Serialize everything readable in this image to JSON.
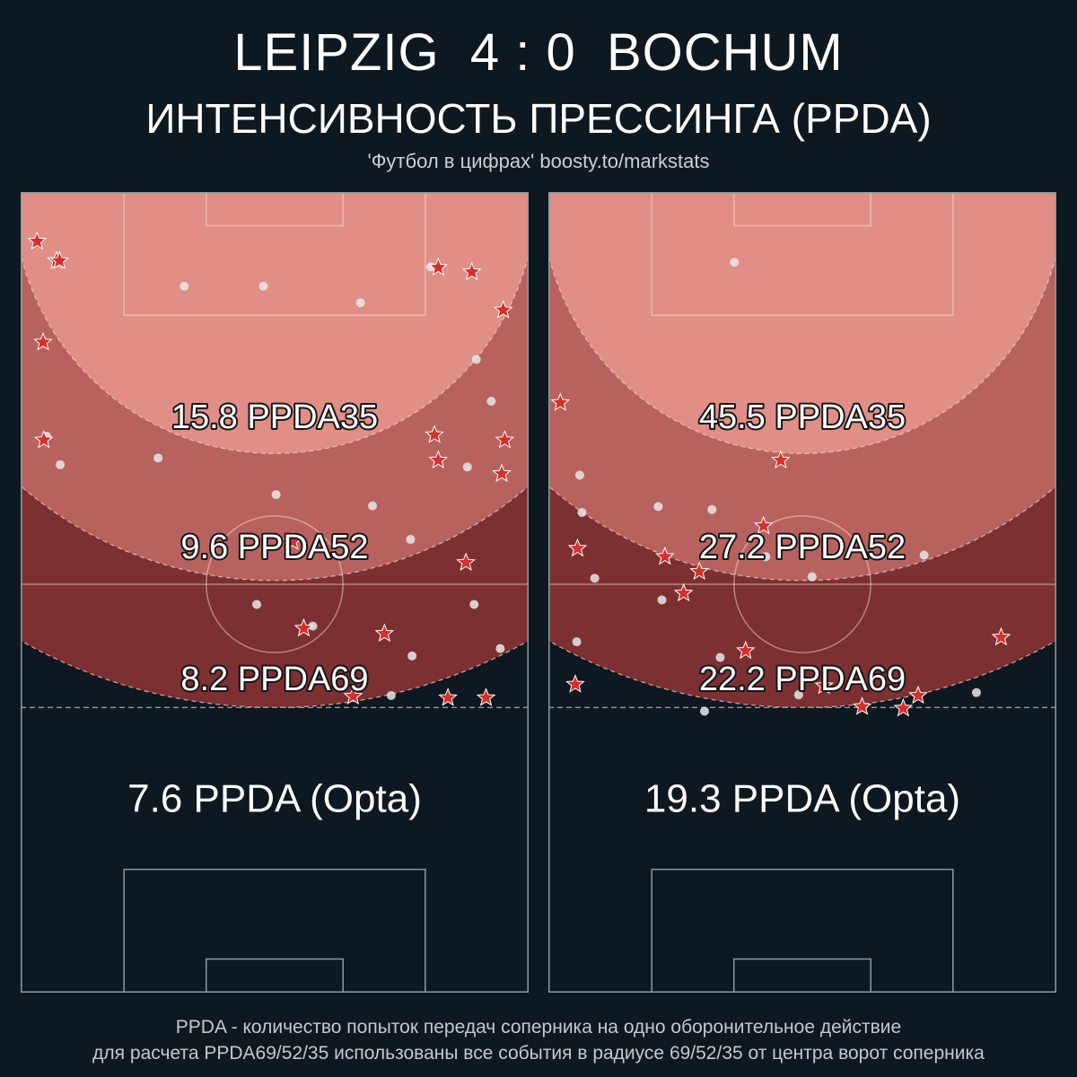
{
  "header": {
    "title": "LEIPZIG  4 : 0  BOCHUM",
    "subtitle": "ИНТЕНСИВНОСТЬ ПРЕССИНГА (PPDA)",
    "credit": "'Футбол в цифрах' boosty.to/markstats"
  },
  "footer": {
    "line1": "PPDA - количество попыток передач соперника на одно оборонительное действие",
    "line2": "для расчета PPDA69/52/35 использованы все события в радиусе 69/52/35 от центра ворот соперника"
  },
  "colors": {
    "background": "#0e1820",
    "zone35": "#e08e86",
    "zone52": "#b8625f",
    "zone69": "#7c3032",
    "star": "#d4302c",
    "dot": "#e8e8e8"
  },
  "chart_data": [
    {
      "type": "scatter",
      "team": "LEIPZIG",
      "ppda_labels": {
        "ppda35": "15.8 PPDA35",
        "ppda52": "9.6 PPDA52",
        "ppda69": "8.2 PPDA69",
        "opta": "7.6 PPDA (Opta)"
      },
      "radii": [
        35,
        52,
        69
      ],
      "xlim": [
        0,
        68
      ],
      "ylim": [
        0,
        105
      ],
      "stars": [
        [
          2.2,
          98.4
        ],
        [
          4.8,
          95.8
        ],
        [
          5.2,
          95.8
        ],
        [
          55.9,
          94.9
        ],
        [
          60.4,
          94.3
        ],
        [
          64.6,
          89.2
        ],
        [
          3.0,
          84.9
        ],
        [
          55.4,
          72.5
        ],
        [
          3.1,
          71.8
        ],
        [
          64.8,
          71.8
        ],
        [
          55.9,
          69.1
        ],
        [
          64.4,
          67.3
        ],
        [
          36.4,
          58.2
        ],
        [
          59.6,
          55.4
        ],
        [
          37.9,
          46.6
        ],
        [
          48.7,
          45.9
        ],
        [
          44.5,
          37.5
        ],
        [
          57.2,
          37.3
        ],
        [
          62.3,
          37.3
        ]
      ],
      "dots": [
        [
          21.9,
          92.4
        ],
        [
          32.5,
          92.4
        ],
        [
          45.5,
          90.2
        ],
        [
          54.9,
          95.0
        ],
        [
          61.0,
          82.6
        ],
        [
          63.0,
          77.0
        ],
        [
          3.5,
          72.3
        ],
        [
          18.4,
          69.4
        ],
        [
          5.3,
          68.5
        ],
        [
          59.8,
          68.2
        ],
        [
          34.2,
          64.5
        ],
        [
          47.1,
          63.0
        ],
        [
          52.2,
          58.5
        ],
        [
          31.6,
          49.8
        ],
        [
          39.1,
          46.9
        ],
        [
          60.7,
          49.8
        ],
        [
          64.2,
          43.9
        ],
        [
          52.4,
          42.9
        ],
        [
          49.6,
          37.6
        ]
      ]
    },
    {
      "type": "scatter",
      "team": "BOCHUM",
      "ppda_labels": {
        "ppda35": "45.5 PPDA35",
        "ppda52": "27.2 PPDA52",
        "ppda69": "22.2 PPDA69",
        "opta": "19.3 PPDA (Opta)"
      },
      "radii": [
        35,
        52,
        69
      ],
      "xlim": [
        0,
        68
      ],
      "ylim": [
        0,
        105
      ],
      "stars": [
        [
          1.6,
          76.8
        ],
        [
          31.1,
          69.1
        ],
        [
          28.8,
          60.3
        ],
        [
          3.9,
          57.3
        ],
        [
          15.6,
          56.2
        ],
        [
          20.2,
          54.2
        ],
        [
          18.1,
          51.3
        ],
        [
          60.6,
          45.4
        ],
        [
          26.4,
          43.6
        ],
        [
          3.6,
          39.1
        ],
        [
          36.9,
          38.9
        ],
        [
          49.5,
          37.6
        ],
        [
          47.5,
          35.9
        ],
        [
          42.0,
          36.1
        ]
      ],
      "dots": [
        [
          24.9,
          95.6
        ],
        [
          4.2,
          67.1
        ],
        [
          14.7,
          62.9
        ],
        [
          21.9,
          62.5
        ],
        [
          4.5,
          62.1
        ],
        [
          29.1,
          56.2
        ],
        [
          6.2,
          53.3
        ],
        [
          35.3,
          53.5
        ],
        [
          15.2,
          50.4
        ],
        [
          50.3,
          56.4
        ],
        [
          3.8,
          44.8
        ],
        [
          23.0,
          42.7
        ],
        [
          33.5,
          37.7
        ],
        [
          57.3,
          38.0
        ],
        [
          20.9,
          35.5
        ]
      ]
    }
  ]
}
